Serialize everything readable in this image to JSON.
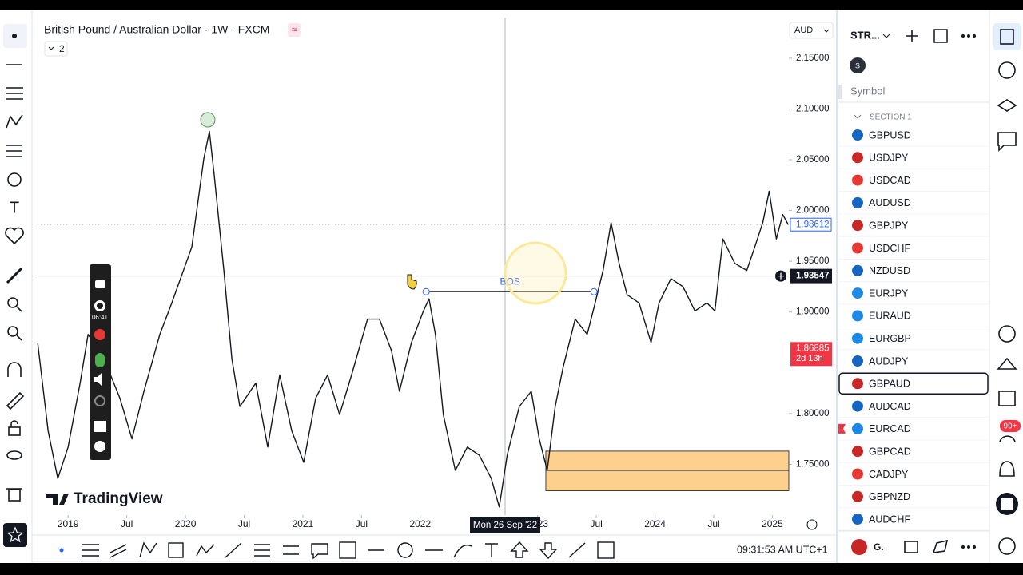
{
  "header": {
    "title": "British Pound / Australian Dollar · 1W · FXCM",
    "indicators": "2",
    "currency": "AUD"
  },
  "chart_data": {
    "type": "line",
    "color": "#131722",
    "x": [
      2018.741,
      2018.83,
      2018.912,
      2019.0,
      2019.102,
      2019.17,
      2019.306,
      2019.442,
      2019.544,
      2019.646,
      2019.782,
      2019.884,
      2020.054,
      2020.156,
      2020.204,
      2020.245,
      2020.327,
      2020.395,
      2020.463,
      2020.599,
      2020.701,
      2020.803,
      2020.905,
      2021.007,
      2021.109,
      2021.211,
      2021.313,
      2021.415,
      2021.551,
      2021.653,
      2021.755,
      2021.823,
      2021.925,
      2022.027,
      2022.075,
      2022.129,
      2022.197,
      2022.299,
      2022.401,
      2022.503,
      2022.605,
      2022.673,
      2022.741,
      2022.844,
      2022.946,
      2023.014,
      2023.082,
      2023.15,
      2023.218,
      2023.32,
      2023.422,
      2023.49,
      2023.558,
      2023.626,
      2023.694,
      2023.762,
      2023.864,
      2023.966,
      2024.034,
      2024.136,
      2024.238,
      2024.34,
      2024.442,
      2024.51,
      2024.578,
      2024.68,
      2024.782,
      2024.85,
      2024.918,
      2024.973,
      2025.034,
      2025.088,
      2025.136
    ],
    "values": [
      1.87,
      1.783,
      1.736,
      1.767,
      1.83,
      1.878,
      1.854,
      1.815,
      1.775,
      1.822,
      1.878,
      1.909,
      1.964,
      2.051,
      2.078,
      2.035,
      1.941,
      1.854,
      1.807,
      1.83,
      1.767,
      1.838,
      1.783,
      1.752,
      1.815,
      1.838,
      1.799,
      1.838,
      1.893,
      1.893,
      1.862,
      1.822,
      1.87,
      1.901,
      1.913,
      1.878,
      1.799,
      1.744,
      1.767,
      1.759,
      1.736,
      1.708,
      1.759,
      1.807,
      1.822,
      1.775,
      1.744,
      1.807,
      1.846,
      1.893,
      1.878,
      1.909,
      1.941,
      1.988,
      1.948,
      1.917,
      1.909,
      1.87,
      1.909,
      1.933,
      1.925,
      1.901,
      1.909,
      1.901,
      1.972,
      1.948,
      1.941,
      1.964,
      1.988,
      2.019,
      1.972,
      1.996,
      1.986
    ],
    "xlim": [
      2018.74,
      2025.14
    ],
    "xticks": [
      2019,
      {
        "value": 2019.5,
        "label": "Jul"
      },
      2020,
      {
        "value": 2020.5,
        "label": "Jul"
      },
      2021,
      {
        "value": 2021.5,
        "label": "Jul"
      },
      2022,
      2023,
      {
        "value": 2023.5,
        "label": "Jul"
      },
      2024,
      {
        "value": 2024.5,
        "label": "Jul"
      },
      2025
    ],
    "ylim": [
      1.7,
      2.19
    ],
    "yticks": [
      {
        "value": 2.15,
        "label": "2.15000"
      },
      {
        "value": 2.1,
        "label": "2.10000"
      },
      {
        "value": 2.05,
        "label": "2.05000"
      },
      {
        "value": 2.0,
        "label": "2.00000"
      },
      {
        "value": 1.95,
        "label": "1.95000"
      },
      {
        "value": 1.9,
        "label": "1.90000"
      },
      {
        "value": 1.85,
        "label": "1.85000"
      },
      {
        "value": 1.8,
        "label": "1.80000"
      },
      {
        "value": 1.75,
        "label": "1.75000"
      }
    ],
    "last_price": 1.98612,
    "crosshair_price": 1.93547,
    "crosshair_date": "Mon 26 Sep '22",
    "alert_price": 1.86885,
    "alert_countdown": "2d 13h",
    "bos": {
      "label": "BOS",
      "price": 1.92,
      "from": 2022.05,
      "to": 2023.48
    },
    "zone": {
      "from": 2023.07,
      "top": 1.763,
      "mid": 1.744,
      "bottom": 1.724
    }
  },
  "watchlist": {
    "name": "STR...",
    "avatar": "S",
    "column": "Symbol",
    "section": "SECTION 1",
    "symbols": [
      "GBPUSD",
      "USDJPY",
      "USDCAD",
      "AUDUSD",
      "GBPJPY",
      "USDCHF",
      "NZDUSD",
      "EURJPY",
      "EURAUD",
      "EURGBP",
      "AUDJPY",
      "GBPAUD",
      "AUDCAD",
      "EURCAD",
      "GBPCAD",
      "CADJPY",
      "GBPNZD",
      "AUDCHF"
    ],
    "selected": 11,
    "flagged": 13
  },
  "recorder": {
    "time": "06:41"
  },
  "logo": "TradingView",
  "badge": "99+",
  "footer": {
    "clock": "09:31:53 AM UTC+1",
    "layout": "G."
  }
}
